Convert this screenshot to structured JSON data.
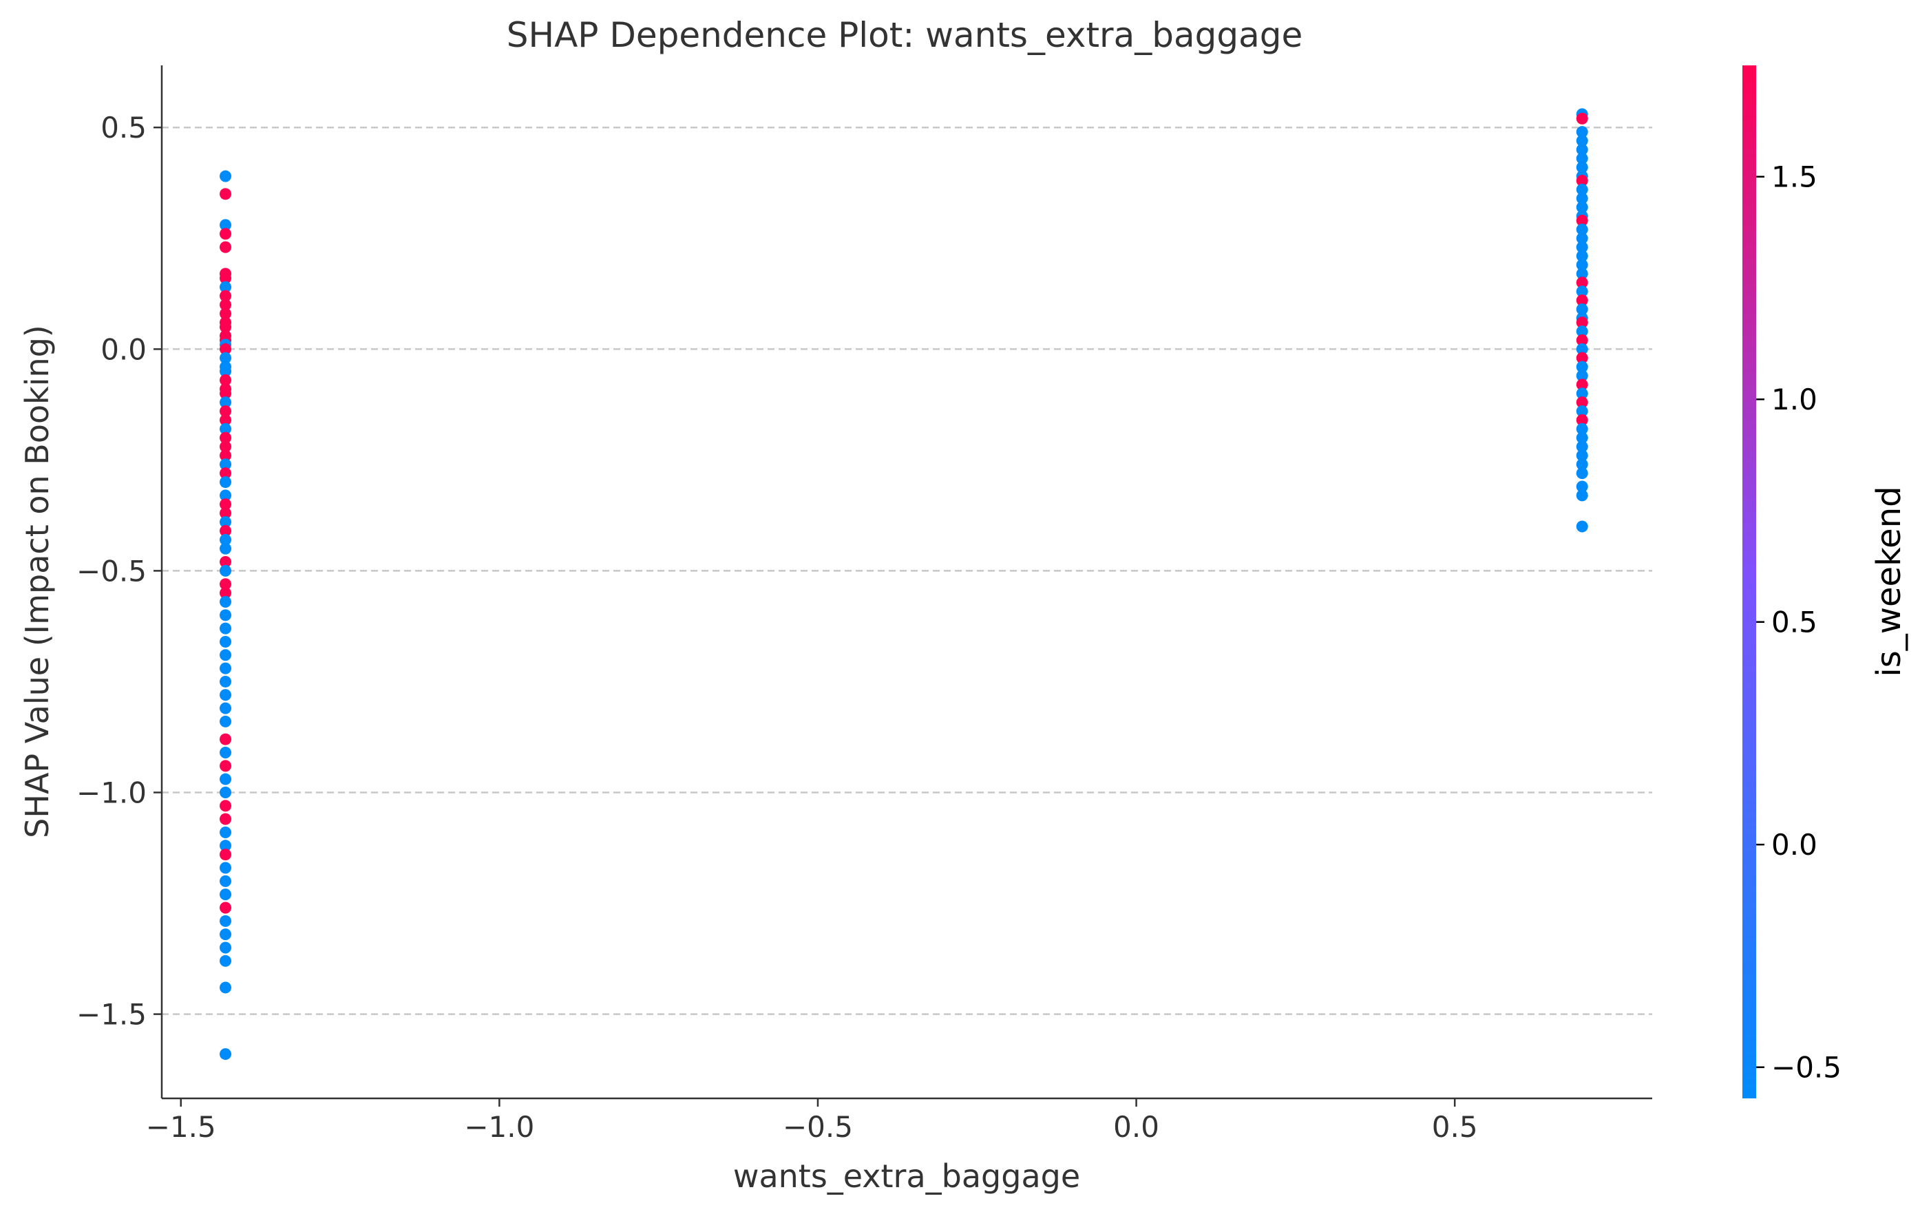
{
  "chart_data": {
    "type": "scatter",
    "title": "SHAP Dependence Plot: wants_extra_baggage",
    "xlabel": "wants_extra_baggage",
    "ylabel": "SHAP Value (Impact on Booking)",
    "xlim": [
      -1.53,
      0.81
    ],
    "ylim": [
      -1.69,
      0.64
    ],
    "xticks": [
      -1.5,
      -1.0,
      -0.5,
      0.0,
      0.5
    ],
    "xtick_labels": [
      "−1.5",
      "−1.0",
      "−0.5",
      "0.0",
      "0.5"
    ],
    "yticks": [
      0.5,
      0.0,
      -0.5,
      -1.0,
      -1.5
    ],
    "ytick_labels": [
      "0.5",
      "0.0",
      "−0.5",
      "−1.0",
      "−1.5"
    ],
    "grid": "horizontal dashed",
    "colorbar": {
      "label": "is_weekend",
      "range": [
        -0.57,
        1.75
      ],
      "ticks": [
        1.5,
        1.0,
        0.5,
        0.0,
        -0.5
      ],
      "tick_labels": [
        "1.5",
        "1.0",
        "0.5",
        "0.0",
        "−0.5"
      ],
      "low_color": "#008bfb",
      "mid_color": "#7c52ff",
      "high_color": "#ff0052"
    },
    "points": [
      {
        "x": -1.43,
        "y": 0.39,
        "c": -0.57
      },
      {
        "x": -1.43,
        "y": 0.35,
        "c": 1.75
      },
      {
        "x": -1.43,
        "y": 0.28,
        "c": -0.57
      },
      {
        "x": -1.43,
        "y": 0.26,
        "c": 1.75
      },
      {
        "x": -1.43,
        "y": 0.23,
        "c": 1.75
      },
      {
        "x": -1.43,
        "y": 0.17,
        "c": 1.75
      },
      {
        "x": -1.43,
        "y": 0.16,
        "c": 1.75
      },
      {
        "x": -1.43,
        "y": 0.14,
        "c": -0.57
      },
      {
        "x": -1.43,
        "y": 0.12,
        "c": 1.75
      },
      {
        "x": -1.43,
        "y": 0.1,
        "c": 1.75
      },
      {
        "x": -1.43,
        "y": 0.08,
        "c": 1.75
      },
      {
        "x": -1.43,
        "y": 0.06,
        "c": 1.75
      },
      {
        "x": -1.43,
        "y": 0.05,
        "c": 1.75
      },
      {
        "x": -1.43,
        "y": 0.03,
        "c": 1.75
      },
      {
        "x": -1.43,
        "y": 0.02,
        "c": 1.75
      },
      {
        "x": -1.43,
        "y": 0.01,
        "c": -0.57
      },
      {
        "x": -1.43,
        "y": 0.0,
        "c": 1.75
      },
      {
        "x": -1.43,
        "y": -0.02,
        "c": -0.57
      },
      {
        "x": -1.43,
        "y": -0.04,
        "c": -0.57
      },
      {
        "x": -1.43,
        "y": -0.05,
        "c": -0.57
      },
      {
        "x": -1.43,
        "y": -0.07,
        "c": 1.75
      },
      {
        "x": -1.43,
        "y": -0.09,
        "c": 1.75
      },
      {
        "x": -1.43,
        "y": -0.1,
        "c": 1.75
      },
      {
        "x": -1.43,
        "y": -0.12,
        "c": -0.57
      },
      {
        "x": -1.43,
        "y": -0.14,
        "c": 1.75
      },
      {
        "x": -1.43,
        "y": -0.16,
        "c": 1.75
      },
      {
        "x": -1.43,
        "y": -0.18,
        "c": -0.57
      },
      {
        "x": -1.43,
        "y": -0.2,
        "c": 1.75
      },
      {
        "x": -1.43,
        "y": -0.22,
        "c": 1.75
      },
      {
        "x": -1.43,
        "y": -0.24,
        "c": 1.75
      },
      {
        "x": -1.43,
        "y": -0.26,
        "c": -0.57
      },
      {
        "x": -1.43,
        "y": -0.28,
        "c": 1.75
      },
      {
        "x": -1.43,
        "y": -0.3,
        "c": -0.57
      },
      {
        "x": -1.43,
        "y": -0.33,
        "c": -0.57
      },
      {
        "x": -1.43,
        "y": -0.35,
        "c": 1.75
      },
      {
        "x": -1.43,
        "y": -0.37,
        "c": 1.75
      },
      {
        "x": -1.43,
        "y": -0.39,
        "c": -0.57
      },
      {
        "x": -1.43,
        "y": -0.41,
        "c": 1.75
      },
      {
        "x": -1.43,
        "y": -0.43,
        "c": -0.57
      },
      {
        "x": -1.43,
        "y": -0.45,
        "c": -0.57
      },
      {
        "x": -1.43,
        "y": -0.48,
        "c": 1.75
      },
      {
        "x": -1.43,
        "y": -0.5,
        "c": -0.57
      },
      {
        "x": -1.43,
        "y": -0.53,
        "c": 1.75
      },
      {
        "x": -1.43,
        "y": -0.55,
        "c": 1.75
      },
      {
        "x": -1.43,
        "y": -0.57,
        "c": -0.57
      },
      {
        "x": -1.43,
        "y": -0.6,
        "c": -0.57
      },
      {
        "x": -1.43,
        "y": -0.63,
        "c": -0.57
      },
      {
        "x": -1.43,
        "y": -0.66,
        "c": -0.57
      },
      {
        "x": -1.43,
        "y": -0.69,
        "c": -0.57
      },
      {
        "x": -1.43,
        "y": -0.72,
        "c": -0.57
      },
      {
        "x": -1.43,
        "y": -0.75,
        "c": -0.57
      },
      {
        "x": -1.43,
        "y": -0.78,
        "c": -0.57
      },
      {
        "x": -1.43,
        "y": -0.81,
        "c": -0.57
      },
      {
        "x": -1.43,
        "y": -0.84,
        "c": -0.57
      },
      {
        "x": -1.43,
        "y": -0.88,
        "c": 1.75
      },
      {
        "x": -1.43,
        "y": -0.91,
        "c": -0.57
      },
      {
        "x": -1.43,
        "y": -0.94,
        "c": 1.75
      },
      {
        "x": -1.43,
        "y": -0.97,
        "c": -0.57
      },
      {
        "x": -1.43,
        "y": -1.0,
        "c": -0.57
      },
      {
        "x": -1.43,
        "y": -1.03,
        "c": 1.75
      },
      {
        "x": -1.43,
        "y": -1.06,
        "c": 1.75
      },
      {
        "x": -1.43,
        "y": -1.09,
        "c": -0.57
      },
      {
        "x": -1.43,
        "y": -1.12,
        "c": -0.57
      },
      {
        "x": -1.43,
        "y": -1.14,
        "c": 1.75
      },
      {
        "x": -1.43,
        "y": -1.17,
        "c": -0.57
      },
      {
        "x": -1.43,
        "y": -1.2,
        "c": -0.57
      },
      {
        "x": -1.43,
        "y": -1.23,
        "c": -0.57
      },
      {
        "x": -1.43,
        "y": -1.26,
        "c": 1.75
      },
      {
        "x": -1.43,
        "y": -1.29,
        "c": -0.57
      },
      {
        "x": -1.43,
        "y": -1.32,
        "c": -0.57
      },
      {
        "x": -1.43,
        "y": -1.35,
        "c": -0.57
      },
      {
        "x": -1.43,
        "y": -1.38,
        "c": -0.57
      },
      {
        "x": -1.43,
        "y": -1.44,
        "c": -0.57
      },
      {
        "x": -1.43,
        "y": -1.59,
        "c": -0.57
      },
      {
        "x": 0.7,
        "y": 0.53,
        "c": -0.57
      },
      {
        "x": 0.7,
        "y": 0.52,
        "c": 1.75
      },
      {
        "x": 0.7,
        "y": 0.49,
        "c": -0.57
      },
      {
        "x": 0.7,
        "y": 0.47,
        "c": -0.57
      },
      {
        "x": 0.7,
        "y": 0.45,
        "c": -0.57
      },
      {
        "x": 0.7,
        "y": 0.43,
        "c": -0.57
      },
      {
        "x": 0.7,
        "y": 0.41,
        "c": -0.57
      },
      {
        "x": 0.7,
        "y": 0.39,
        "c": -0.57
      },
      {
        "x": 0.7,
        "y": 0.38,
        "c": 1.75
      },
      {
        "x": 0.7,
        "y": 0.36,
        "c": -0.57
      },
      {
        "x": 0.7,
        "y": 0.34,
        "c": -0.57
      },
      {
        "x": 0.7,
        "y": 0.32,
        "c": -0.57
      },
      {
        "x": 0.7,
        "y": 0.3,
        "c": -0.57
      },
      {
        "x": 0.7,
        "y": 0.29,
        "c": 1.75
      },
      {
        "x": 0.7,
        "y": 0.27,
        "c": -0.57
      },
      {
        "x": 0.7,
        "y": 0.25,
        "c": -0.57
      },
      {
        "x": 0.7,
        "y": 0.23,
        "c": -0.57
      },
      {
        "x": 0.7,
        "y": 0.21,
        "c": -0.57
      },
      {
        "x": 0.7,
        "y": 0.19,
        "c": -0.57
      },
      {
        "x": 0.7,
        "y": 0.17,
        "c": -0.57
      },
      {
        "x": 0.7,
        "y": 0.15,
        "c": 1.75
      },
      {
        "x": 0.7,
        "y": 0.13,
        "c": -0.57
      },
      {
        "x": 0.7,
        "y": 0.11,
        "c": 1.75
      },
      {
        "x": 0.7,
        "y": 0.09,
        "c": -0.57
      },
      {
        "x": 0.7,
        "y": 0.07,
        "c": -0.57
      },
      {
        "x": 0.7,
        "y": 0.06,
        "c": 1.75
      },
      {
        "x": 0.7,
        "y": 0.04,
        "c": -0.57
      },
      {
        "x": 0.7,
        "y": 0.02,
        "c": 1.75
      },
      {
        "x": 0.7,
        "y": 0.0,
        "c": -0.57
      },
      {
        "x": 0.7,
        "y": -0.02,
        "c": 1.75
      },
      {
        "x": 0.7,
        "y": -0.04,
        "c": -0.57
      },
      {
        "x": 0.7,
        "y": -0.06,
        "c": -0.57
      },
      {
        "x": 0.7,
        "y": -0.08,
        "c": 1.75
      },
      {
        "x": 0.7,
        "y": -0.1,
        "c": -0.57
      },
      {
        "x": 0.7,
        "y": -0.12,
        "c": 1.75
      },
      {
        "x": 0.7,
        "y": -0.14,
        "c": -0.57
      },
      {
        "x": 0.7,
        "y": -0.16,
        "c": 1.75
      },
      {
        "x": 0.7,
        "y": -0.18,
        "c": -0.57
      },
      {
        "x": 0.7,
        "y": -0.2,
        "c": -0.57
      },
      {
        "x": 0.7,
        "y": -0.22,
        "c": -0.57
      },
      {
        "x": 0.7,
        "y": -0.24,
        "c": -0.57
      },
      {
        "x": 0.7,
        "y": -0.26,
        "c": -0.57
      },
      {
        "x": 0.7,
        "y": -0.28,
        "c": -0.57
      },
      {
        "x": 0.7,
        "y": -0.31,
        "c": -0.57
      },
      {
        "x": 0.7,
        "y": -0.33,
        "c": -0.57
      },
      {
        "x": 0.7,
        "y": -0.4,
        "c": -0.57
      }
    ]
  }
}
